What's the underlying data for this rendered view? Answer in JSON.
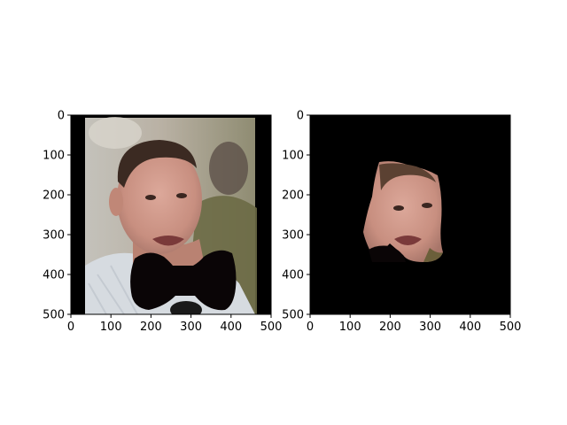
{
  "chart_data": [
    {
      "type": "image",
      "panel": "left",
      "content": "photo of a man's face with the lower part covered by a black bow-tie shaped mask",
      "image_size": [
        500,
        500
      ],
      "xlim": [
        0,
        500
      ],
      "ylim": [
        500,
        0
      ],
      "xticks": [
        0,
        100,
        200,
        300,
        400,
        500
      ],
      "yticks": [
        0,
        100,
        200,
        300,
        400,
        500
      ],
      "xtick_labels": [
        "0",
        "100",
        "200",
        "300",
        "400",
        "500"
      ],
      "ytick_labels": [
        "0",
        "100",
        "200",
        "300",
        "400",
        "500"
      ]
    },
    {
      "type": "image",
      "panel": "right",
      "content": "segmented face region on black background",
      "image_size": [
        500,
        500
      ],
      "xlim": [
        0,
        500
      ],
      "ylim": [
        500,
        0
      ],
      "xticks": [
        0,
        100,
        200,
        300,
        400,
        500
      ],
      "yticks": [
        0,
        100,
        200,
        300,
        400,
        500
      ],
      "xtick_labels": [
        "0",
        "100",
        "200",
        "300",
        "400",
        "500"
      ],
      "ytick_labels": [
        "0",
        "100",
        "200",
        "300",
        "400",
        "500"
      ]
    }
  ],
  "colors": {
    "mask": "#0a0506",
    "background_black": "#000000",
    "skin": "#cf9b8c",
    "hair": "#3b2a22",
    "shirt": "#d8dde2",
    "photo_bg_left": "#b7b2a6",
    "photo_bg_right": "#6e6a44"
  }
}
